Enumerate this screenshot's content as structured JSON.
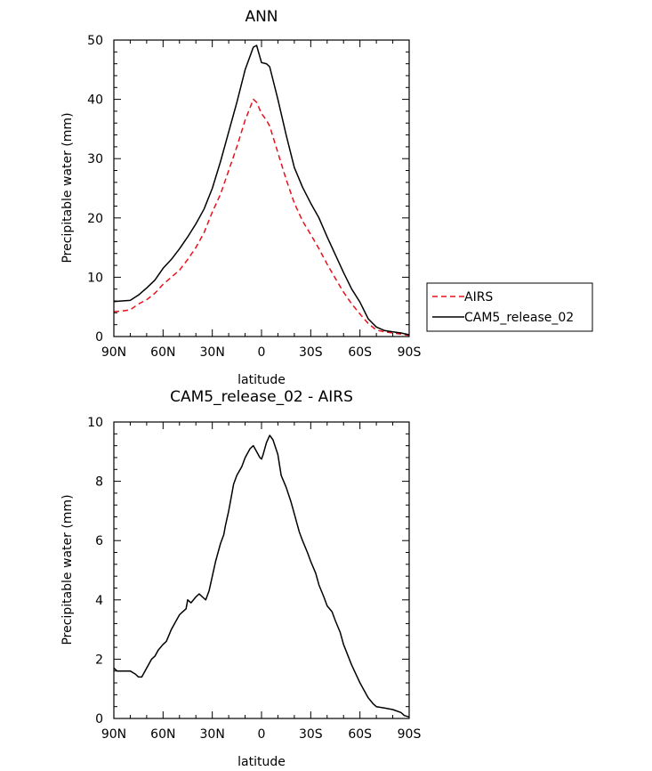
{
  "chart_data": [
    {
      "type": "line",
      "title": "ANN",
      "xlabel": "latitude",
      "ylabel": "Precipitable water (mm)",
      "xlim": [
        -90,
        90
      ],
      "ylim": [
        0,
        50
      ],
      "x_ticks": [
        -90,
        -60,
        -30,
        0,
        30,
        60,
        90
      ],
      "x_tick_labels": [
        "90N",
        "60N",
        "30N",
        "0",
        "30S",
        "60S",
        "90S"
      ],
      "y_ticks": [
        0,
        10,
        20,
        30,
        40,
        50
      ],
      "y_tick_labels": [
        "0",
        "10",
        "20",
        "30",
        "40",
        "50"
      ],
      "legend": {
        "placement": "right",
        "entries": [
          "AIRS",
          "CAM5_release_02"
        ]
      },
      "series": [
        {
          "name": "AIRS",
          "color": "#e8101a",
          "style": "dashed",
          "x": [
            -90,
            -85,
            -80,
            -75,
            -70,
            -65,
            -60,
            -55,
            -50,
            -45,
            -40,
            -35,
            -30,
            -25,
            -20,
            -15,
            -10,
            -5,
            -3,
            0,
            3,
            5,
            10,
            15,
            20,
            25,
            30,
            35,
            40,
            45,
            50,
            55,
            60,
            65,
            70,
            75,
            80,
            85,
            90
          ],
          "values": [
            4.2,
            4.3,
            4.5,
            5.5,
            6.2,
            7.3,
            8.8,
            10.0,
            11.2,
            13.0,
            15.0,
            17.5,
            21.0,
            24.0,
            28.0,
            32.0,
            36.5,
            40.0,
            39.5,
            37.6,
            36.5,
            35.5,
            31.0,
            26.5,
            22.5,
            19.5,
            17.2,
            14.8,
            12.2,
            9.8,
            7.5,
            5.5,
            3.8,
            2.2,
            1.1,
            0.8,
            0.6,
            0.4,
            0.2
          ]
        },
        {
          "name": "CAM5_release_02",
          "color": "#000000",
          "style": "solid",
          "x": [
            -90,
            -85,
            -80,
            -75,
            -70,
            -65,
            -60,
            -55,
            -50,
            -45,
            -40,
            -35,
            -30,
            -25,
            -20,
            -15,
            -10,
            -5,
            -3,
            0,
            3,
            5,
            10,
            15,
            20,
            25,
            30,
            35,
            40,
            45,
            50,
            55,
            60,
            65,
            70,
            75,
            80,
            85,
            90
          ],
          "values": [
            5.9,
            6.0,
            6.1,
            7.0,
            8.2,
            9.5,
            11.5,
            13.0,
            14.8,
            16.8,
            19.0,
            21.5,
            25.0,
            29.5,
            34.5,
            39.5,
            45.0,
            48.8,
            49.1,
            46.2,
            46.0,
            45.5,
            40.0,
            34.0,
            28.5,
            25.2,
            22.5,
            20.0,
            16.8,
            13.8,
            10.8,
            8.0,
            5.8,
            3.0,
            1.6,
            1.0,
            0.8,
            0.6,
            0.3
          ]
        }
      ]
    },
    {
      "type": "line",
      "title": "CAM5_release_02 - AIRS",
      "xlabel": "latitude",
      "ylabel": "Precipitable water (mm)",
      "xlim": [
        -90,
        90
      ],
      "ylim": [
        0,
        10
      ],
      "x_ticks": [
        -90,
        -60,
        -30,
        0,
        30,
        60,
        90
      ],
      "x_tick_labels": [
        "90N",
        "60N",
        "30N",
        "0",
        "30S",
        "60S",
        "90S"
      ],
      "y_ticks": [
        0,
        2,
        4,
        6,
        8,
        10
      ],
      "y_tick_labels": [
        "0",
        "2",
        "4",
        "6",
        "8",
        "10"
      ],
      "series": [
        {
          "name": "CAM5_release_02 - AIRS",
          "color": "#000000",
          "style": "solid",
          "x": [
            -90,
            -88,
            -85,
            -80,
            -77,
            -75,
            -73,
            -70,
            -67,
            -65,
            -63,
            -60,
            -58,
            -55,
            -52,
            -50,
            -48,
            -46,
            -45,
            -43,
            -40,
            -38,
            -36,
            -34,
            -32,
            -30,
            -28,
            -27,
            -25,
            -23,
            -22,
            -20,
            -18,
            -17,
            -15,
            -12,
            -10,
            -7,
            -5,
            -3,
            -1,
            0,
            1,
            3,
            5,
            7,
            10,
            12,
            15,
            18,
            20,
            23,
            25,
            28,
            30,
            33,
            35,
            38,
            40,
            43,
            45,
            48,
            50,
            55,
            60,
            63,
            65,
            68,
            70,
            75,
            80,
            85,
            87,
            90
          ],
          "values": [
            1.7,
            1.6,
            1.6,
            1.6,
            1.5,
            1.4,
            1.4,
            1.7,
            2.0,
            2.1,
            2.3,
            2.5,
            2.6,
            3.0,
            3.3,
            3.5,
            3.6,
            3.7,
            4.0,
            3.9,
            4.1,
            4.2,
            4.1,
            4.0,
            4.3,
            4.8,
            5.3,
            5.5,
            5.9,
            6.2,
            6.5,
            7.0,
            7.6,
            7.9,
            8.2,
            8.5,
            8.8,
            9.1,
            9.2,
            9.0,
            8.8,
            8.75,
            8.9,
            9.3,
            9.55,
            9.4,
            8.9,
            8.2,
            7.8,
            7.3,
            6.9,
            6.3,
            6.0,
            5.6,
            5.3,
            4.9,
            4.5,
            4.1,
            3.8,
            3.6,
            3.3,
            2.9,
            2.5,
            1.8,
            1.2,
            0.9,
            0.7,
            0.5,
            0.4,
            0.35,
            0.3,
            0.2,
            0.1,
            0.05
          ]
        }
      ]
    }
  ]
}
